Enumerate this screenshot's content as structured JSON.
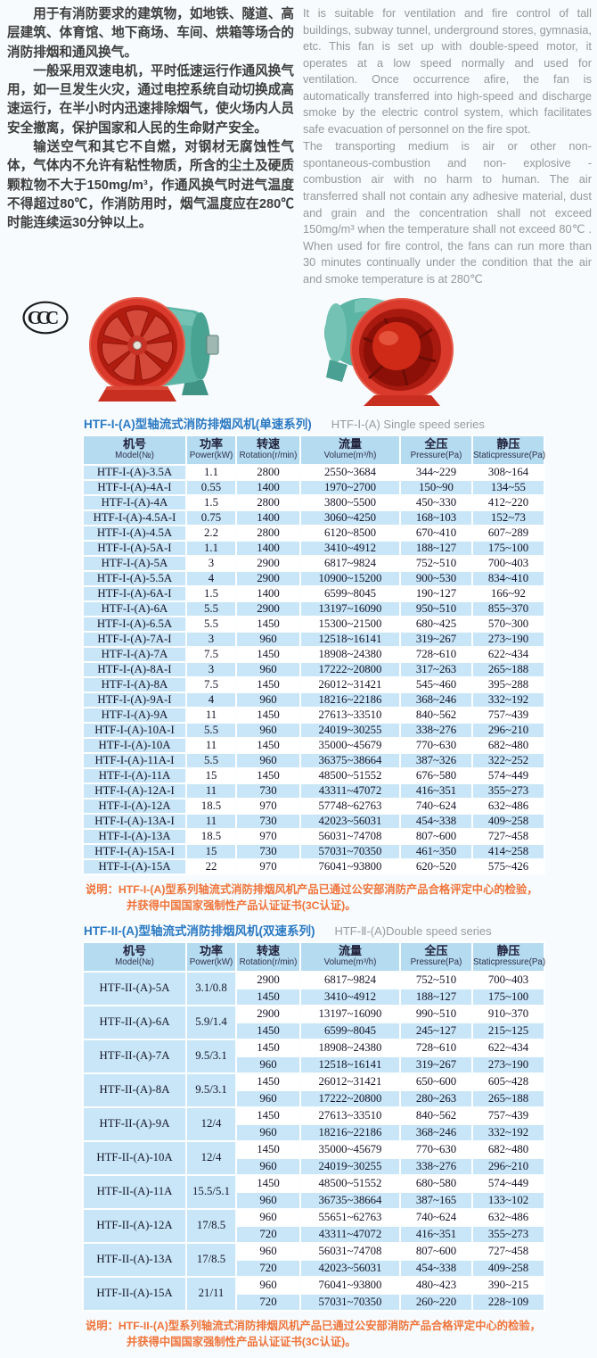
{
  "intro": {
    "zh_paragraphs": [
      "用于有消防要求的建筑物，如地铁、隧道、高层建筑、体育馆、地下商场、车间、烘箱等场合的消防排烟和通风换气。",
      "一般采用双速电机，平时低速运行作通风换气用，如一旦发生火灾，通过电控系统自动切换成高速运行，在半小时内迅速排除烟气，使火场内人员安全撤离，保护国家和人民的生命财产安全。",
      "输送空气和其它不自燃，对钢材无腐蚀性气体，气体内不允许有粘性物质，所含的尘土及硬质颗粒物不大于150mg/m³，作通风换气时进气温度不得超过80℃，作消防用时，烟气温度应在280℃时能连续运30分钟以上。"
    ],
    "en_paragraphs": [
      "It is suitable for ventilation and fire control of tall buildings, subway tunnel, underground stores, gymnasia, etc. This fan is set up with double-speed motor, it operates at a low speed normally and used for ventilation. Once occurrence afire, the fan is automatically transferred into high-speed and discharge smoke by the electric control system, which facilitates safe evacuation of personnel on the fire spot.",
      "The transporting medium is air or other non-spontaneous-combustion and non- explosive - combustion air with no harm to human. The air transferred shall not contain any adhesive material, dust and grain and the concentration shall not exceed 150mg/m³ when the temperature shall not exceed 80℃ . When used for fire control, the fans can run more than 30 minutes continually under the condition that the air and smoke temperature is at 280℃"
    ]
  },
  "ccc_mark_text": "CCC",
  "colors": {
    "title_blue": "#2a79c3",
    "table_header_bg": "#b4dbf0",
    "table_row_blue": "#c8e6f7",
    "note_orange": "#f0743a",
    "fan_red": "#d93a2b",
    "fan_teal": "#5cb4a4"
  },
  "table1": {
    "title_zh": "HTF-I-(A)型轴流式消防排烟风机(单速系列)",
    "title_en": "HTF-Ⅰ-(A) Single speed series",
    "headers": [
      {
        "zh": "机号",
        "en": "Model(№)"
      },
      {
        "zh": "功率",
        "en": "Power(kW)"
      },
      {
        "zh": "转速",
        "en": "Rotation(r/min)"
      },
      {
        "zh": "流量",
        "en": "Volume(m³/h)"
      },
      {
        "zh": "全压",
        "en": "Pressure(Pa)"
      },
      {
        "zh": "静压",
        "en": "Staticpressure(Pa)"
      }
    ],
    "rows": [
      [
        "HTF-I-(A)-3.5A",
        "1.1",
        "2800",
        "2550~3684",
        "344~229",
        "308~164"
      ],
      [
        "HTF-I-(A)-4A-I",
        "0.55",
        "1400",
        "1970~2700",
        "150~90",
        "134~55"
      ],
      [
        "HTF-I-(A)-4A",
        "1.5",
        "2800",
        "3800~5500",
        "450~330",
        "412~220"
      ],
      [
        "HTF-I-(A)-4.5A-I",
        "0.75",
        "1400",
        "3060~4250",
        "168~103",
        "152~73"
      ],
      [
        "HTF-I-(A)-4.5A",
        "2.2",
        "2800",
        "6120~8500",
        "670~410",
        "607~289"
      ],
      [
        "HTF-I-(A)-5A-I",
        "1.1",
        "1400",
        "3410~4912",
        "188~127",
        "175~100"
      ],
      [
        "HTF-I-(A)-5A",
        "3",
        "2900",
        "6817~9824",
        "752~510",
        "700~403"
      ],
      [
        "HTF-I-(A)-5.5A",
        "4",
        "2900",
        "10900~15200",
        "900~530",
        "834~410"
      ],
      [
        "HTF-I-(A)-6A-I",
        "1.5",
        "1400",
        "6599~8045",
        "190~127",
        "166~92"
      ],
      [
        "HTF-I-(A)-6A",
        "5.5",
        "2900",
        "13197~16090",
        "950~510",
        "855~370"
      ],
      [
        "HTF-I-(A)-6.5A",
        "5.5",
        "1450",
        "15300~21500",
        "680~425",
        "570~300"
      ],
      [
        "HTF-I-(A)-7A-I",
        "3",
        "960",
        "12518~16141",
        "319~267",
        "273~190"
      ],
      [
        "HTF-I-(A)-7A",
        "7.5",
        "1450",
        "18908~24380",
        "728~610",
        "622~434"
      ],
      [
        "HTF-I-(A)-8A-I",
        "3",
        "960",
        "17222~20800",
        "317~263",
        "265~188"
      ],
      [
        "HTF-I-(A)-8A",
        "7.5",
        "1450",
        "26012~31421",
        "545~460",
        "395~288"
      ],
      [
        "HTF-I-(A)-9A-I",
        "4",
        "960",
        "18216~22186",
        "368~246",
        "332~192"
      ],
      [
        "HTF-I-(A)-9A",
        "11",
        "1450",
        "27613~33510",
        "840~562",
        "757~439"
      ],
      [
        "HTF-I-(A)-10A-I",
        "5.5",
        "960",
        "24019~30255",
        "338~276",
        "296~210"
      ],
      [
        "HTF-I-(A)-10A",
        "11",
        "1450",
        "35000~45679",
        "770~630",
        "682~480"
      ],
      [
        "HTF-I-(A)-11A-I",
        "5.5",
        "960",
        "36375~38664",
        "387~326",
        "322~252"
      ],
      [
        "HTF-I-(A)-11A",
        "15",
        "1450",
        "48500~51552",
        "676~580",
        "574~449"
      ],
      [
        "HTF-I-(A)-12A-I",
        "11",
        "730",
        "43311~47072",
        "416~351",
        "355~273"
      ],
      [
        "HTF-I-(A)-12A",
        "18.5",
        "970",
        "57748~62763",
        "740~624",
        "632~486"
      ],
      [
        "HTF-I-(A)-13A-I",
        "11",
        "730",
        "42023~56031",
        "454~338",
        "409~258"
      ],
      [
        "HTF-I-(A)-13A",
        "18.5",
        "970",
        "56031~74708",
        "807~600",
        "727~458"
      ],
      [
        "HTF-I-(A)-15A-I",
        "15",
        "730",
        "57031~70350",
        "461~350",
        "414~258"
      ],
      [
        "HTF-I-(A)-15A",
        "22",
        "970",
        "76041~93800",
        "620~520",
        "575~426"
      ]
    ],
    "note_line1": "说明：HTF-I-(A)型系列轴流式消防排烟风机产品已通过公安部消防产品合格评定中心的检验，",
    "note_line2": "并获得中国国家强制性产品认证证书(3C认证)。"
  },
  "table2": {
    "title_zh": "HTF-II-(A)型轴流式消防排烟风机(双速系列)",
    "title_en": "HTF-Ⅱ-(A)Double speed series",
    "headers": [
      {
        "zh": "机号",
        "en": "Model(№)"
      },
      {
        "zh": "功率",
        "en": "Power(kW)"
      },
      {
        "zh": "转速",
        "en": "Rotation(r/min)"
      },
      {
        "zh": "流量",
        "en": "Volume(m³/h)"
      },
      {
        "zh": "全压",
        "en": "Pressure(Pa)"
      },
      {
        "zh": "静压",
        "en": "Staticpressure(Pa)"
      }
    ],
    "rows": [
      {
        "model": "HTF-II-(A)-5A",
        "power": "3.1/0.8",
        "speeds": [
          [
            "2900",
            "6817~9824",
            "752~510",
            "700~403"
          ],
          [
            "1450",
            "3410~4912",
            "188~127",
            "175~100"
          ]
        ]
      },
      {
        "model": "HTF-II-(A)-6A",
        "power": "5.9/1.4",
        "speeds": [
          [
            "2900",
            "13197~16090",
            "990~510",
            "910~370"
          ],
          [
            "1450",
            "6599~8045",
            "245~127",
            "215~125"
          ]
        ]
      },
      {
        "model": "HTF-II-(A)-7A",
        "power": "9.5/3.1",
        "speeds": [
          [
            "1450",
            "18908~24380",
            "728~610",
            "622~434"
          ],
          [
            "960",
            "12518~16141",
            "319~267",
            "273~190"
          ]
        ]
      },
      {
        "model": "HTF-II-(A)-8A",
        "power": "9.5/3.1",
        "speeds": [
          [
            "1450",
            "26012~31421",
            "650~600",
            "605~428"
          ],
          [
            "960",
            "17222~20800",
            "280~263",
            "265~188"
          ]
        ]
      },
      {
        "model": "HTF-II-(A)-9A",
        "power": "12/4",
        "speeds": [
          [
            "1450",
            "27613~33510",
            "840~562",
            "757~439"
          ],
          [
            "960",
            "18216~22186",
            "368~246",
            "332~192"
          ]
        ]
      },
      {
        "model": "HTF-II-(A)-10A",
        "power": "12/4",
        "speeds": [
          [
            "1450",
            "35000~45679",
            "770~630",
            "682~480"
          ],
          [
            "960",
            "24019~30255",
            "338~276",
            "296~210"
          ]
        ]
      },
      {
        "model": "HTF-II-(A)-11A",
        "power": "15.5/5.1",
        "speeds": [
          [
            "1450",
            "48500~51552",
            "680~580",
            "574~449"
          ],
          [
            "960",
            "36735~38664",
            "387~165",
            "133~102"
          ]
        ]
      },
      {
        "model": "HTF-II-(A)-12A",
        "power": "17/8.5",
        "speeds": [
          [
            "960",
            "55651~62763",
            "740~624",
            "632~486"
          ],
          [
            "720",
            "43311~47072",
            "416~351",
            "355~273"
          ]
        ]
      },
      {
        "model": "HTF-II-(A)-13A",
        "power": "17/8.5",
        "speeds": [
          [
            "960",
            "56031~74708",
            "807~600",
            "727~458"
          ],
          [
            "720",
            "42023~56031",
            "454~338",
            "409~258"
          ]
        ]
      },
      {
        "model": "HTF-II-(A)-15A",
        "power": "21/11",
        "speeds": [
          [
            "960",
            "76041~93800",
            "480~423",
            "390~215"
          ],
          [
            "720",
            "57031~70350",
            "260~220",
            "228~109"
          ]
        ]
      }
    ],
    "note_line1": "说明：HTF-II-(A)型系列轴流式消防排烟风机产品已通过公安部消防产品合格评定中心的检验，",
    "note_line2": "并获得中国国家强制性产品认证证书(3C认证)。"
  }
}
